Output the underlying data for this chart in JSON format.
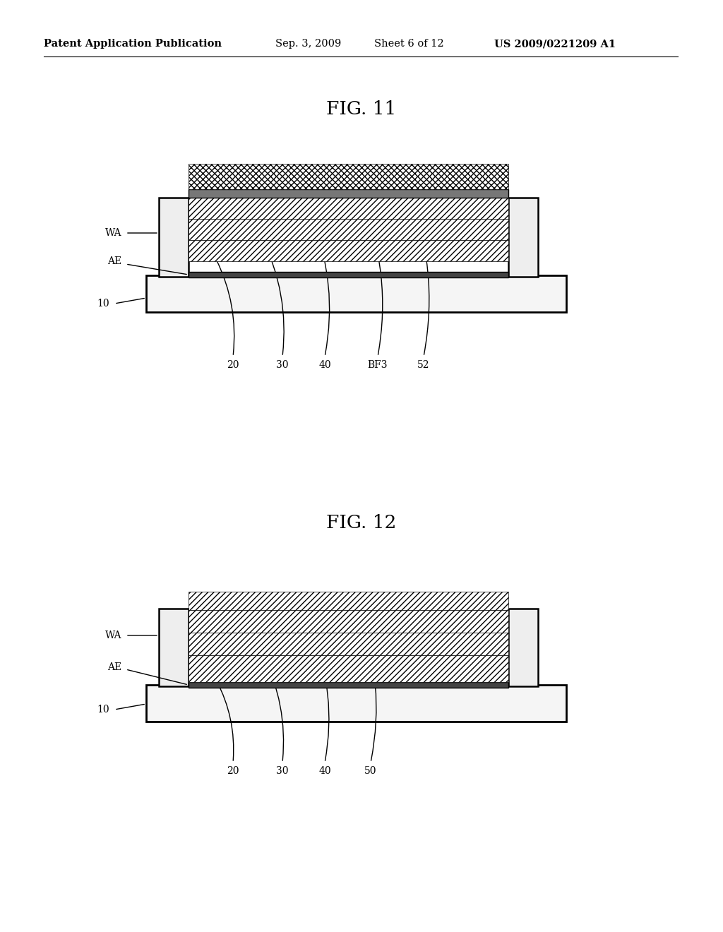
{
  "background_color": "#ffffff",
  "fig_width": 10.24,
  "fig_height": 13.2,
  "header_text": "Patent Application Publication",
  "header_date": "Sep. 3, 2009",
  "header_sheet": "Sheet 6 of 12",
  "header_patent": "US 2009/0221209 A1",
  "fig11_title": "FIG. 11",
  "fig12_title": "FIG. 12"
}
